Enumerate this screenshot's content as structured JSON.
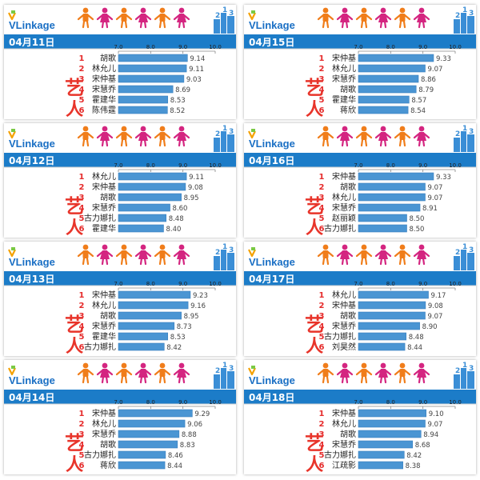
{
  "brand": {
    "name": "VLinkage",
    "v_color": "#f5a100",
    "text_color": "#1a6fc4"
  },
  "colors": {
    "date_bg": "#1c7cc8",
    "date_text": "#ffffff",
    "bar": "#4a95d3",
    "bar_edge": "#3a7fbe",
    "rank": "#e52b2b",
    "name": "#222222",
    "value": "#444444",
    "tick": "#222222",
    "axis_line": "#888888",
    "side_mark": "#e8342a",
    "figure_orange": "#f07d1a",
    "figure_magenta": "#d42580",
    "skyline": "#3a8ed6"
  },
  "icons": [
    "person-figure-icon",
    "skyline-icon",
    "vlinkage-logo-icon",
    "art-character-mark-icon"
  ],
  "chart_data": [
    {
      "type": "bar",
      "date": "04月11日",
      "xlim": [
        7.0,
        10.0
      ],
      "ticks": [
        "7.0",
        "8.0",
        "9.0",
        "10.0"
      ],
      "ranks": [
        "1",
        "2",
        "3",
        "4",
        "5",
        "6"
      ],
      "categories": [
        "胡歌",
        "林允儿",
        "宋仲基",
        "宋慧乔",
        "霍建华",
        "陈伟霆"
      ],
      "values": [
        9.14,
        9.11,
        9.03,
        8.69,
        8.53,
        8.52
      ],
      "labels": [
        "9.14",
        "9.11",
        "9.03",
        "8.69",
        "8.53",
        "8.52"
      ]
    },
    {
      "type": "bar",
      "date": "04月15日",
      "xlim": [
        7.0,
        10.0
      ],
      "ticks": [
        "7.0",
        "8.0",
        "9.0",
        "10.0"
      ],
      "ranks": [
        "1",
        "2",
        "3",
        "4",
        "5",
        "6"
      ],
      "categories": [
        "宋仲基",
        "林允儿",
        "宋慧乔",
        "胡歌",
        "霍建华",
        "蒋欣"
      ],
      "values": [
        9.33,
        9.07,
        8.86,
        8.79,
        8.57,
        8.54
      ],
      "labels": [
        "9.33",
        "9.07",
        "8.86",
        "8.79",
        "8.57",
        "8.54"
      ]
    },
    {
      "type": "bar",
      "date": "04月12日",
      "xlim": [
        7.0,
        10.0
      ],
      "ticks": [
        "7.0",
        "8.0",
        "9.0",
        "10.0"
      ],
      "ranks": [
        "1",
        "2",
        "3",
        "4",
        "5",
        "6"
      ],
      "categories": [
        "林允儿",
        "宋仲基",
        "胡歌",
        "宋慧乔",
        "古力娜扎",
        "霍建华"
      ],
      "values": [
        9.11,
        9.08,
        8.95,
        8.6,
        8.48,
        8.4
      ],
      "labels": [
        "9.11",
        "9.08",
        "8.95",
        "8.60",
        "8.48",
        "8.40"
      ]
    },
    {
      "type": "bar",
      "date": "04月16日",
      "xlim": [
        7.0,
        10.0
      ],
      "ticks": [
        "7.0",
        "8.0",
        "9.0",
        "10.0"
      ],
      "ranks": [
        "1",
        "2",
        "3",
        "4",
        "5",
        "6"
      ],
      "categories": [
        "宋仲基",
        "胡歌",
        "林允儿",
        "宋慧乔",
        "赵丽颖",
        "古力娜扎"
      ],
      "values": [
        9.33,
        9.07,
        9.07,
        8.91,
        8.5,
        8.5
      ],
      "labels": [
        "9.33",
        "9.07",
        "9.07",
        "8.91",
        "8.50",
        "8.50"
      ]
    },
    {
      "type": "bar",
      "date": "04月13日",
      "xlim": [
        7.0,
        10.0
      ],
      "ticks": [
        "7.0",
        "8.0",
        "9.0",
        "10.0"
      ],
      "ranks": [
        "1",
        "2",
        "3",
        "4",
        "5",
        "6"
      ],
      "categories": [
        "宋仲基",
        "林允儿",
        "胡歌",
        "宋慧乔",
        "霍建华",
        "古力娜扎"
      ],
      "values": [
        9.23,
        9.16,
        8.95,
        8.73,
        8.53,
        8.42
      ],
      "labels": [
        "9.23",
        "9.16",
        "8.95",
        "8.73",
        "8.53",
        "8.42"
      ]
    },
    {
      "type": "bar",
      "date": "04月17日",
      "xlim": [
        7.0,
        10.0
      ],
      "ticks": [
        "7.0",
        "8.0",
        "9.0",
        "10.0"
      ],
      "ranks": [
        "1",
        "2",
        "3",
        "4",
        "5",
        "6"
      ],
      "categories": [
        "林允儿",
        "宋仲基",
        "胡歌",
        "宋慧乔",
        "古力娜扎",
        "刘昊然"
      ],
      "values": [
        9.17,
        9.08,
        9.07,
        8.9,
        8.48,
        8.44
      ],
      "labels": [
        "9.17",
        "9.08",
        "9.07",
        "8.90",
        "8.48",
        "8.44"
      ]
    },
    {
      "type": "bar",
      "date": "04月14日",
      "xlim": [
        7.0,
        10.0
      ],
      "ticks": [
        "7.0",
        "8.0",
        "9.0",
        "10.0"
      ],
      "ranks": [
        "1",
        "2",
        "3",
        "4",
        "5",
        "6"
      ],
      "categories": [
        "宋仲基",
        "林允儿",
        "宋慧乔",
        "胡歌",
        "古力娜扎",
        "蒋欣"
      ],
      "values": [
        9.29,
        9.06,
        8.88,
        8.83,
        8.46,
        8.44
      ],
      "labels": [
        "9.29",
        "9.06",
        "8.88",
        "8.83",
        "8.46",
        "8.44"
      ]
    },
    {
      "type": "bar",
      "date": "04月18日",
      "xlim": [
        7.0,
        10.0
      ],
      "ticks": [
        "7.0",
        "8.0",
        "9.0",
        "10.0"
      ],
      "ranks": [
        "1",
        "2",
        "3",
        "4",
        "5",
        "6"
      ],
      "categories": [
        "宋仲基",
        "林允儿",
        "胡歌",
        "宋慧乔",
        "古力娜扎",
        "江疏影"
      ],
      "values": [
        9.1,
        9.07,
        8.94,
        8.68,
        8.42,
        8.38
      ],
      "labels": [
        "9.10",
        "9.07",
        "8.94",
        "8.68",
        "8.42",
        "8.38"
      ]
    }
  ]
}
